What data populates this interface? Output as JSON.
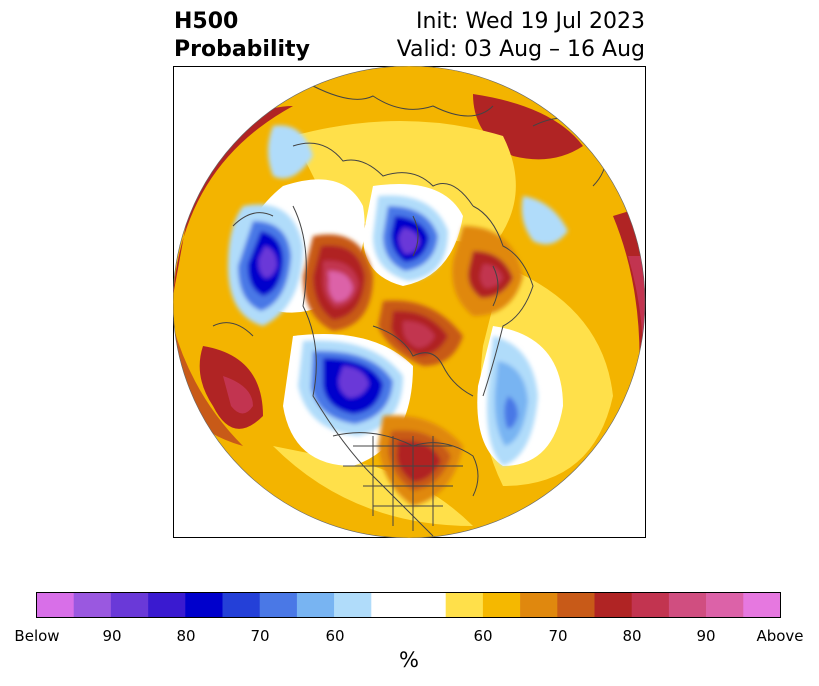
{
  "header": {
    "title_line1": "H500",
    "title_line2": "Probability",
    "init": "Init: Wed 19 Jul 2023",
    "valid": "Valid: 03 Aug – 16 Aug"
  },
  "colorbar": {
    "unit": "%",
    "colors": [
      "#d86fe8",
      "#9a58e0",
      "#6a39d8",
      "#3a1ad0",
      "#0000cc",
      "#2440d8",
      "#4a78e6",
      "#78b4f2",
      "#b0dcfa",
      "#ffffff",
      "#ffffff",
      "#ffe04a",
      "#f5b800",
      "#e0880e",
      "#c85a18",
      "#b02424",
      "#c23450",
      "#d04e80",
      "#dc62a8",
      "#e678e0"
    ],
    "tick_labels": [
      "Below",
      "90",
      "80",
      "70",
      "60",
      "60",
      "70",
      "80",
      "90",
      "Above"
    ]
  },
  "map": {
    "colors": {
      "ocean_bg": "#fbe36a",
      "coast": "#444444"
    }
  }
}
